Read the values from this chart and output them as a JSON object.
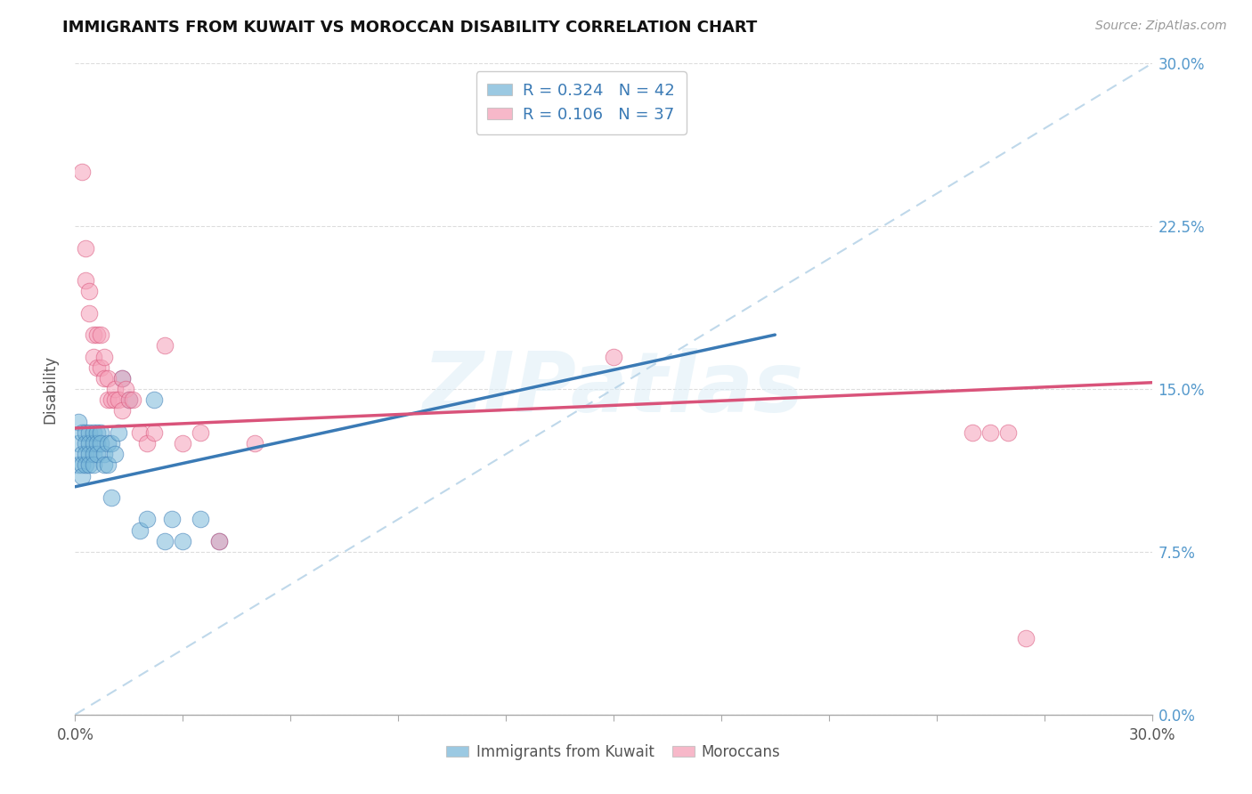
{
  "title": "IMMIGRANTS FROM KUWAIT VS MOROCCAN DISABILITY CORRELATION CHART",
  "source": "Source: ZipAtlas.com",
  "ylabel": "Disability",
  "ytick_labels": [
    "0.0%",
    "7.5%",
    "15.0%",
    "22.5%",
    "30.0%"
  ],
  "ytick_values": [
    0.0,
    0.075,
    0.15,
    0.225,
    0.3
  ],
  "xlim": [
    0.0,
    0.3
  ],
  "ylim": [
    0.0,
    0.3
  ],
  "legend_r1": "R = 0.324",
  "legend_n1": "N = 42",
  "legend_r2": "R = 0.106",
  "legend_n2": "N = 37",
  "blue_color": "#7ab8d9",
  "pink_color": "#f5a0b8",
  "blue_line_color": "#3a7ab5",
  "pink_line_color": "#d9537a",
  "watermark": "ZIPatlas",
  "kuwait_x": [
    0.001,
    0.001,
    0.001,
    0.002,
    0.002,
    0.002,
    0.002,
    0.003,
    0.003,
    0.003,
    0.003,
    0.004,
    0.004,
    0.004,
    0.004,
    0.005,
    0.005,
    0.005,
    0.005,
    0.006,
    0.006,
    0.006,
    0.007,
    0.007,
    0.008,
    0.008,
    0.009,
    0.009,
    0.01,
    0.01,
    0.011,
    0.012,
    0.013,
    0.015,
    0.018,
    0.02,
    0.022,
    0.025,
    0.027,
    0.03,
    0.035,
    0.04
  ],
  "kuwait_y": [
    0.135,
    0.125,
    0.115,
    0.13,
    0.12,
    0.115,
    0.11,
    0.13,
    0.125,
    0.12,
    0.115,
    0.13,
    0.125,
    0.12,
    0.115,
    0.13,
    0.125,
    0.12,
    0.115,
    0.13,
    0.125,
    0.12,
    0.13,
    0.125,
    0.12,
    0.115,
    0.125,
    0.115,
    0.125,
    0.1,
    0.12,
    0.13,
    0.155,
    0.145,
    0.085,
    0.09,
    0.145,
    0.08,
    0.09,
    0.08,
    0.09,
    0.08
  ],
  "moroccan_x": [
    0.002,
    0.003,
    0.003,
    0.004,
    0.004,
    0.005,
    0.005,
    0.006,
    0.006,
    0.007,
    0.007,
    0.008,
    0.008,
    0.009,
    0.009,
    0.01,
    0.011,
    0.011,
    0.012,
    0.013,
    0.013,
    0.014,
    0.015,
    0.016,
    0.018,
    0.02,
    0.022,
    0.025,
    0.03,
    0.035,
    0.04,
    0.05,
    0.15,
    0.25,
    0.255,
    0.26,
    0.265
  ],
  "moroccan_y": [
    0.25,
    0.215,
    0.2,
    0.195,
    0.185,
    0.175,
    0.165,
    0.16,
    0.175,
    0.16,
    0.175,
    0.155,
    0.165,
    0.155,
    0.145,
    0.145,
    0.15,
    0.145,
    0.145,
    0.14,
    0.155,
    0.15,
    0.145,
    0.145,
    0.13,
    0.125,
    0.13,
    0.17,
    0.125,
    0.13,
    0.08,
    0.125,
    0.165,
    0.13,
    0.13,
    0.13,
    0.035
  ],
  "blue_trend_x": [
    0.0,
    0.195
  ],
  "blue_trend_y": [
    0.105,
    0.175
  ],
  "pink_trend_x": [
    0.0,
    0.3
  ],
  "pink_trend_y": [
    0.132,
    0.153
  ],
  "dashed_line_x": [
    0.0,
    0.3
  ],
  "dashed_line_y": [
    0.0,
    0.3
  ],
  "background_color": "#ffffff",
  "grid_color": "#dddddd",
  "xtick_positions": [
    0.0,
    0.03,
    0.06,
    0.09,
    0.12,
    0.15,
    0.18,
    0.21,
    0.24,
    0.27,
    0.3
  ]
}
